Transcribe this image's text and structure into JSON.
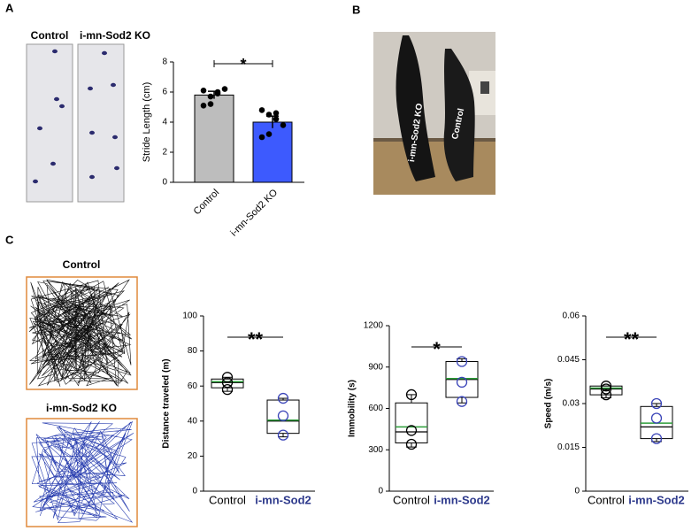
{
  "panels": {
    "a": "A",
    "b": "B",
    "c": "C"
  },
  "footprint_labels": [
    "Control",
    "i-mn-Sod2 KO"
  ],
  "photo_labels": [
    "i-mn-Sod2 KO",
    "Control"
  ],
  "track_labels": [
    "Control",
    "i-mn-Sod2 KO"
  ],
  "chart_data": [
    {
      "type": "bar",
      "ylabel": "Stride Length (cm)",
      "categories": [
        "Control",
        "i-mn-Sod2 KO"
      ],
      "values": [
        5.8,
        4.0
      ],
      "errors": [
        0.25,
        0.4
      ],
      "colors": [
        "#bdbdbd",
        "#3d5afe"
      ],
      "points": [
        [
          6.1,
          5.7,
          5.9,
          6.2,
          5.1,
          5.2,
          6.0
        ],
        [
          4.8,
          4.5,
          4.2,
          3.8,
          3.0,
          3.2,
          4.6
        ]
      ],
      "ylim": [
        0,
        8
      ],
      "yticks": [
        0,
        2,
        4,
        6,
        8
      ],
      "annotation": "*"
    },
    {
      "type": "box",
      "ylabel": "Distance traveled (m)",
      "categories": [
        "Control",
        "i-mn-Sod2"
      ],
      "category_colors": [
        "#000000",
        "#2e3a8c"
      ],
      "mean_color": "#2e9e3a",
      "boxes": [
        {
          "min": 57,
          "q1": 59,
          "median": 62,
          "q3": 64,
          "max": 65,
          "mean": 62,
          "points": [
            58,
            62,
            65
          ]
        },
        {
          "min": 31,
          "q1": 33,
          "median": 40,
          "q3": 52,
          "max": 53,
          "mean": 40,
          "points": [
            32,
            43,
            53
          ]
        }
      ],
      "ylim": [
        0,
        100
      ],
      "yticks": [
        0,
        20,
        40,
        60,
        80,
        100
      ],
      "annotation": "**"
    },
    {
      "type": "box",
      "ylabel": "Immobility (s)",
      "categories": [
        "Control",
        "i-mn-Sod2"
      ],
      "category_colors": [
        "#000000",
        "#2e3a8c"
      ],
      "mean_color": "#2e9e3a",
      "boxes": [
        {
          "min": 320,
          "q1": 350,
          "median": 430,
          "q3": 640,
          "max": 700,
          "mean": 460,
          "points": [
            340,
            440,
            700
          ]
        },
        {
          "min": 640,
          "q1": 680,
          "median": 810,
          "q3": 940,
          "max": 960,
          "mean": 810,
          "points": [
            650,
            790,
            940
          ]
        }
      ],
      "ylim": [
        0,
        1200
      ],
      "yticks": [
        0,
        300,
        600,
        900,
        1200
      ],
      "annotation": "*"
    },
    {
      "type": "box",
      "ylabel": "Speed (m/s)",
      "categories": [
        "Control",
        "i-mn-Sod2"
      ],
      "category_colors": [
        "#000000",
        "#2e3a8c"
      ],
      "mean_color": "#2e9e3a",
      "boxes": [
        {
          "min": 0.032,
          "q1": 0.033,
          "median": 0.035,
          "q3": 0.036,
          "max": 0.036,
          "mean": 0.035,
          "points": [
            0.033,
            0.035,
            0.036
          ]
        },
        {
          "min": 0.017,
          "q1": 0.018,
          "median": 0.022,
          "q3": 0.029,
          "max": 0.03,
          "mean": 0.023,
          "points": [
            0.018,
            0.025,
            0.03
          ]
        }
      ],
      "ylim": [
        0,
        0.06
      ],
      "yticks": [
        0,
        0.015,
        0.03,
        0.045,
        0.06
      ],
      "annotation": "**"
    }
  ]
}
